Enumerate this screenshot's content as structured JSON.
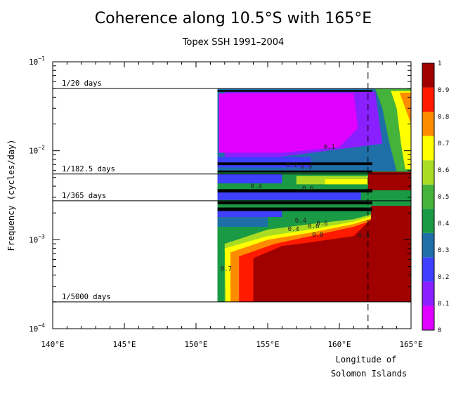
{
  "chart_data": {
    "type": "heatmap",
    "title": "Coherence along 10.5°S with 165°E",
    "subtitle": "Topex SSH 1991–2004",
    "xlabel": "Longitude of",
    "xlabel2": "Solomon Islands",
    "ylabel": "Frequency (cycles/day)",
    "y_scale": "log",
    "xlim": [
      140,
      165
    ],
    "ylim": [
      0.0001,
      0.1
    ],
    "x_ticks": [
      {
        "value": 140,
        "label": "140°E"
      },
      {
        "value": 145,
        "label": "145°E"
      },
      {
        "value": 150,
        "label": "150°E"
      },
      {
        "value": 155,
        "label": "155°E"
      },
      {
        "value": 160,
        "label": "160°E"
      },
      {
        "value": 165,
        "label": "165°E"
      }
    ],
    "y_ticks": [
      {
        "value": 0.1,
        "base": "10",
        "exp": "−1"
      },
      {
        "value": 0.01,
        "base": "10",
        "exp": "−2"
      },
      {
        "value": 0.001,
        "base": "10",
        "exp": "−3"
      },
      {
        "value": 0.0001,
        "base": "10",
        "exp": "−4"
      }
    ],
    "reference_lines": [
      {
        "label": "1/20 days",
        "frequency": 0.05
      },
      {
        "label": "1/182.5 days",
        "frequency": 0.00548
      },
      {
        "label": "1/365 days",
        "frequency": 0.00274
      },
      {
        "label": "1/5000 days",
        "frequency": 0.0002
      }
    ],
    "vertical_marker": {
      "longitude": 162,
      "style": "dashed"
    },
    "data_extent": {
      "lon_min": 151.5,
      "lon_max": 165,
      "freq_min": 0.0002,
      "freq_max": 0.05
    },
    "colorbar": {
      "levels": [
        0,
        0.1,
        0.2,
        0.3,
        0.4,
        0.5,
        0.6,
        0.7,
        0.8,
        0.9,
        1
      ],
      "labels": [
        "0",
        "0.1",
        "0.2",
        "0.3",
        "0.4",
        "0.5",
        "0.6",
        "0.7",
        "0.8",
        "0.9",
        "1"
      ],
      "colors": [
        "#e000ff",
        "#8a1fff",
        "#3f3fff",
        "#1e6fa8",
        "#1a9a44",
        "#44b33a",
        "#aadd22",
        "#ffff00",
        "#ff8c00",
        "#ff1a00",
        "#a00000"
      ]
    },
    "contour_labels": [
      {
        "text": "0.1",
        "lon": 159.3,
        "freq": 0.0105
      },
      {
        "text": "0.2",
        "lon": 156.7,
        "freq": 0.0066
      },
      {
        "text": "0.8",
        "lon": 157.7,
        "freq": 0.0063
      },
      {
        "text": "0.4",
        "lon": 154.2,
        "freq": 0.0038
      },
      {
        "text": "0.6",
        "lon": 157.8,
        "freq": 0.0036
      },
      {
        "text": "0.4",
        "lon": 156.8,
        "freq": 0.00125
      },
      {
        "text": "0.4",
        "lon": 157.3,
        "freq": 0.00155
      },
      {
        "text": "0.6",
        "lon": 158.2,
        "freq": 0.00135
      },
      {
        "text": "0.6",
        "lon": 158.8,
        "freq": 0.00145
      },
      {
        "text": "0.8",
        "lon": 158.5,
        "freq": 0.00108
      },
      {
        "text": "0.9",
        "lon": 161.7,
        "freq": 0.00105
      },
      {
        "text": "0.7",
        "lon": 152.1,
        "freq": 0.00045
      }
    ]
  }
}
